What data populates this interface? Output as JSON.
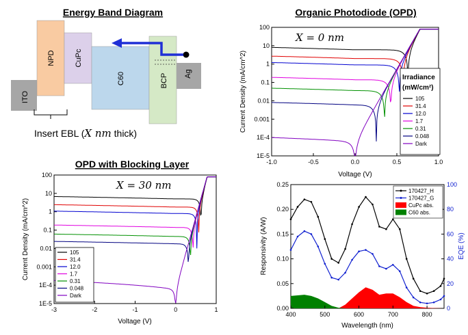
{
  "band_diagram": {
    "title": "Energy Band Diagram",
    "layers": [
      {
        "name": "ITO"
      },
      {
        "name": "NPD"
      },
      {
        "name": "CuPc"
      },
      {
        "name": "C60"
      },
      {
        "name": "BCP"
      },
      {
        "name": "Ag"
      }
    ],
    "insert_label": "Insert EBL (",
    "insert_math": "X nm",
    "insert_tail": " thick)",
    "colors": {
      "ito": "#a6a6a6",
      "npd": "#f9cba2",
      "cupc": "#dcd0ea",
      "c60": "#bcd7ec",
      "bcp": "#d5e9c6",
      "ag": "#a6a6a6",
      "arrow": "#1f2fd6"
    }
  },
  "opd_panel": {
    "title": "Organic Photodiode (OPD)",
    "annotation": "X = 0 nm",
    "legend_title": "Irradiance",
    "legend_units": "(mW/cm²)"
  },
  "blocking_panel": {
    "title": "OPD with Blocking Layer",
    "annotation": "X = 30 nm"
  },
  "eqe_panel": {
    "legend": [
      "170427_H",
      "170427_G",
      "CuPc abs.",
      "C60 abs."
    ]
  },
  "chart_data": [
    {
      "type": "line",
      "title": "Organic Photodiode (OPD)",
      "xlabel": "Voltage (V)",
      "ylabel": "Current Density (mA/cm^2)",
      "xlim": [
        -1.0,
        1.0
      ],
      "ylim": [
        1e-05,
        100
      ],
      "yscale": "log",
      "xticks": [
        "-1.0",
        "-0.5",
        "0.0",
        "0.5",
        "1.0"
      ],
      "yticks": [
        "1E-5",
        "1E-4",
        "0.001",
        "0.01",
        "0.1",
        "1",
        "10",
        "100"
      ],
      "series": [
        {
          "name": "105",
          "color": "#000000",
          "jsc": 6.0,
          "voc": 0.44
        },
        {
          "name": "31.4",
          "color": "#e00000",
          "jsc": 2.0,
          "voc": 0.42
        },
        {
          "name": "12.0",
          "color": "#0000d0",
          "jsc": 0.9,
          "voc": 0.4
        },
        {
          "name": "1.7",
          "color": "#e000e0",
          "jsc": 0.14,
          "voc": 0.36
        },
        {
          "name": "0.31",
          "color": "#009000",
          "jsc": 0.036,
          "voc": 0.31
        },
        {
          "name": "0.048",
          "color": "#000080",
          "jsc": 0.006,
          "voc": 0.17
        },
        {
          "name": "Dark",
          "color": "#8000c0",
          "jsc": 0.0,
          "voc": 0.0
        }
      ]
    },
    {
      "type": "line",
      "title": "OPD with Blocking Layer",
      "xlabel": "Voltage (V)",
      "ylabel": "Current Density (mA/cm^2)",
      "xlim": [
        -3,
        1
      ],
      "ylim": [
        1e-05,
        100
      ],
      "yscale": "log",
      "xticks": [
        "-3",
        "-2",
        "-1",
        "0",
        "1"
      ],
      "yticks": [
        "1E-5",
        "1E-4",
        "0.001",
        "0.01",
        "0.1",
        "1",
        "10",
        "100"
      ],
      "series": [
        {
          "name": "105",
          "color": "#000000",
          "jsc": 5.0,
          "voc": 0.2
        },
        {
          "name": "31.4",
          "color": "#e00000",
          "jsc": 1.8,
          "voc": 0.18
        },
        {
          "name": "12.0",
          "color": "#0000d0",
          "jsc": 0.8,
          "voc": 0.16
        },
        {
          "name": "1.7",
          "color": "#e000e0",
          "jsc": 0.14,
          "voc": 0.12
        },
        {
          "name": "0.31",
          "color": "#009000",
          "jsc": 0.045,
          "voc": 0.08
        },
        {
          "name": "0.048",
          "color": "#000080",
          "jsc": 0.018,
          "voc": 0.03
        },
        {
          "name": "Dark",
          "color": "#8000c0",
          "jsc": 0.0,
          "voc": 0.0
        }
      ]
    },
    {
      "type": "line",
      "title": "",
      "xlabel": "Wavelength (nm)",
      "ylabel": "Responsivity (A/W)",
      "y2label": "EQE (%)",
      "xlim": [
        400,
        850
      ],
      "ylim": [
        0,
        0.25
      ],
      "y2lim": [
        0,
        100
      ],
      "xticks": [
        "400",
        "500",
        "600",
        "700",
        "800"
      ],
      "yticks": [
        "0.00",
        "0.05",
        "0.10",
        "0.15",
        "0.20",
        "0.25"
      ],
      "y2ticks": [
        "0",
        "20",
        "40",
        "60",
        "80",
        "100"
      ],
      "series": [
        {
          "name": "170427_H",
          "axis": "left",
          "color": "#000000",
          "x": [
            400,
            420,
            440,
            460,
            480,
            500,
            520,
            540,
            560,
            580,
            600,
            620,
            640,
            660,
            680,
            700,
            720,
            740,
            760,
            780,
            800,
            820,
            840,
            850
          ],
          "y": [
            0.18,
            0.205,
            0.22,
            0.215,
            0.185,
            0.14,
            0.1,
            0.092,
            0.12,
            0.17,
            0.205,
            0.225,
            0.21,
            0.165,
            0.16,
            0.18,
            0.16,
            0.1,
            0.06,
            0.035,
            0.03,
            0.035,
            0.045,
            0.06
          ]
        },
        {
          "name": "170427_G",
          "axis": "left",
          "color": "#1020d0",
          "x": [
            400,
            420,
            440,
            460,
            480,
            500,
            520,
            540,
            560,
            580,
            600,
            620,
            640,
            660,
            680,
            700,
            720,
            740,
            760,
            780,
            800,
            820,
            840,
            850
          ],
          "y": [
            0.118,
            0.145,
            0.156,
            0.15,
            0.125,
            0.09,
            0.062,
            0.058,
            0.072,
            0.098,
            0.115,
            0.118,
            0.11,
            0.085,
            0.08,
            0.088,
            0.075,
            0.042,
            0.022,
            0.012,
            0.01,
            0.012,
            0.018,
            0.025
          ]
        },
        {
          "name": "CuPc abs.",
          "axis": "right",
          "color": "#ff0000",
          "kind": "area",
          "x": [
            540,
            560,
            580,
            600,
            620,
            640,
            660,
            680,
            700,
            720,
            740,
            760,
            780,
            800,
            820,
            850
          ],
          "y": [
            0,
            3,
            8,
            13,
            17,
            15,
            11,
            12,
            12,
            9,
            5,
            2,
            1,
            0.5,
            0.2,
            0
          ]
        },
        {
          "name": "C60 abs.",
          "axis": "right",
          "color": "#008000",
          "kind": "area",
          "x": [
            400,
            420,
            440,
            460,
            480,
            500,
            520,
            540,
            560
          ],
          "y": [
            10,
            10.5,
            11,
            10,
            8,
            5,
            2,
            0.5,
            0
          ]
        }
      ]
    }
  ]
}
